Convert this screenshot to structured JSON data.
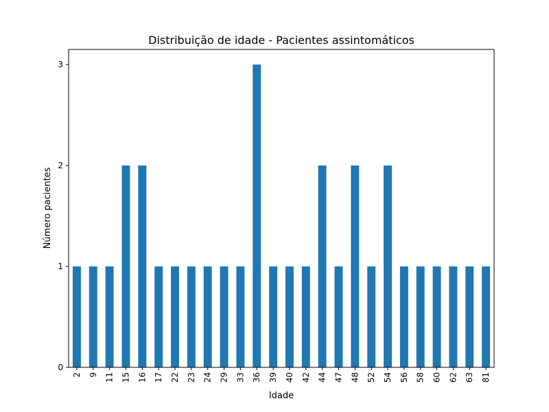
{
  "chart_data": {
    "type": "bar",
    "title": "Distribuição de idade - Pacientes assintomáticos",
    "xlabel": "Idade",
    "ylabel": "Número pacientes",
    "categories": [
      "2",
      "9",
      "11",
      "15",
      "16",
      "17",
      "22",
      "23",
      "24",
      "29",
      "33",
      "36",
      "39",
      "40",
      "42",
      "44",
      "47",
      "48",
      "52",
      "54",
      "56",
      "58",
      "60",
      "62",
      "63",
      "81"
    ],
    "values": [
      1,
      1,
      1,
      2,
      2,
      1,
      1,
      1,
      1,
      1,
      1,
      3,
      1,
      1,
      1,
      2,
      1,
      2,
      1,
      2,
      1,
      1,
      1,
      1,
      1,
      1
    ],
    "yticks": [
      0,
      1,
      2,
      3
    ],
    "ylim": [
      0,
      3.15
    ],
    "grid": false,
    "legend": "none",
    "bar_color": "#1f77b4"
  }
}
